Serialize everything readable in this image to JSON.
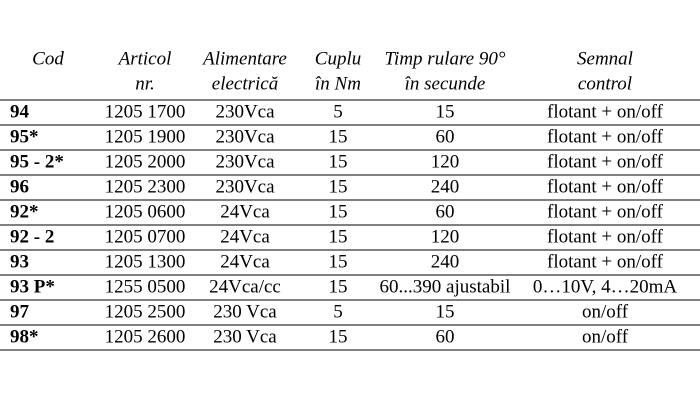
{
  "table": {
    "header": [
      [
        "Cod"
      ],
      [
        "Articol",
        "nr."
      ],
      [
        "Alimentare",
        "electrică"
      ],
      [
        "Cuplu",
        "în Nm"
      ],
      [
        "Timp rulare 90°",
        "în secunde"
      ],
      [
        "Semnal",
        "control"
      ]
    ],
    "rows": [
      [
        "94",
        "1205 1700",
        "230Vca",
        "5",
        "15",
        "flotant + on/off"
      ],
      [
        "95*",
        "1205 1900",
        "230Vca",
        "15",
        "60",
        "flotant + on/off"
      ],
      [
        "95 - 2*",
        "1205 2000",
        "230Vca",
        "15",
        "120",
        "flotant + on/off"
      ],
      [
        "96",
        "1205 2300",
        "230Vca",
        "15",
        "240",
        "flotant + on/off"
      ],
      [
        "92*",
        "1205 0600",
        "24Vca",
        "15",
        "60",
        "flotant + on/off"
      ],
      [
        "92 - 2",
        "1205 0700",
        "24Vca",
        "15",
        "120",
        "flotant + on/off"
      ],
      [
        "93",
        "1205 1300",
        "24Vca",
        "15",
        "240",
        "flotant + on/off"
      ],
      [
        "93 P*",
        "1255 0500",
        "24Vca/cc",
        "15",
        "60...390 ajustabil",
        "0…10V, 4…20mA"
      ],
      [
        "97",
        "1205 2500",
        "230 Vca",
        "5",
        "15",
        "on/off"
      ],
      [
        "98*",
        "1205 2600",
        "230 Vca",
        "15",
        "60",
        "on/off"
      ]
    ]
  }
}
